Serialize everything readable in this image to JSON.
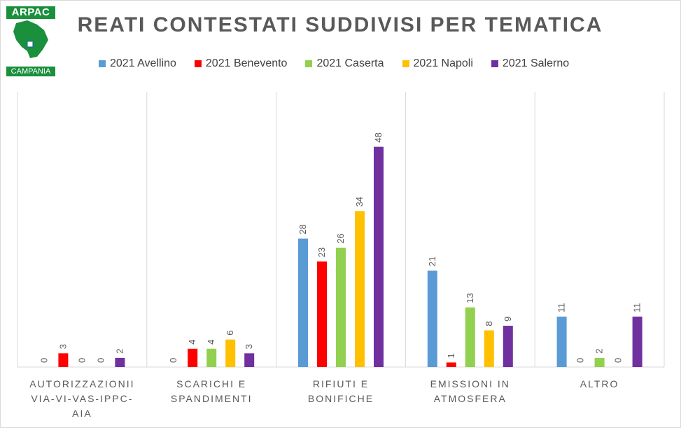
{
  "logo": {
    "top_text": "ARPAC",
    "bottom_text": "CAMPANIA",
    "brand_color": "#1a8f3c"
  },
  "chart_data": {
    "type": "bar",
    "title": "REATI CONTESTATI SUDDIVISI PER TEMATICA",
    "xlabel": "",
    "ylabel": "",
    "ylim": [
      0,
      50
    ],
    "grid": false,
    "legend_position": "top",
    "categories": [
      [
        "AUTORIZZAZIONII",
        "VIA-VI-VAS-IPPC-",
        "AIA"
      ],
      [
        "SCARICHI E",
        "SPANDIMENTI"
      ],
      [
        "RIFIUTI E",
        "BONIFICHE"
      ],
      [
        "EMISSIONI IN",
        "ATMOSFERA"
      ],
      [
        "ALTRO"
      ]
    ],
    "series": [
      {
        "name": "2021 Avellino",
        "color": "#5b9bd5",
        "values": [
          0,
          0,
          28,
          21,
          11
        ]
      },
      {
        "name": "2021 Benevento",
        "color": "#ff0000",
        "values": [
          3,
          4,
          23,
          1,
          0
        ]
      },
      {
        "name": "2021 Caserta",
        "color": "#92d050",
        "values": [
          0,
          4,
          26,
          13,
          2
        ]
      },
      {
        "name": "2021 Napoli",
        "color": "#ffc000",
        "values": [
          0,
          6,
          34,
          8,
          0
        ]
      },
      {
        "name": "2021 Salerno",
        "color": "#7030a0",
        "values": [
          2,
          3,
          48,
          9,
          11
        ]
      }
    ]
  }
}
